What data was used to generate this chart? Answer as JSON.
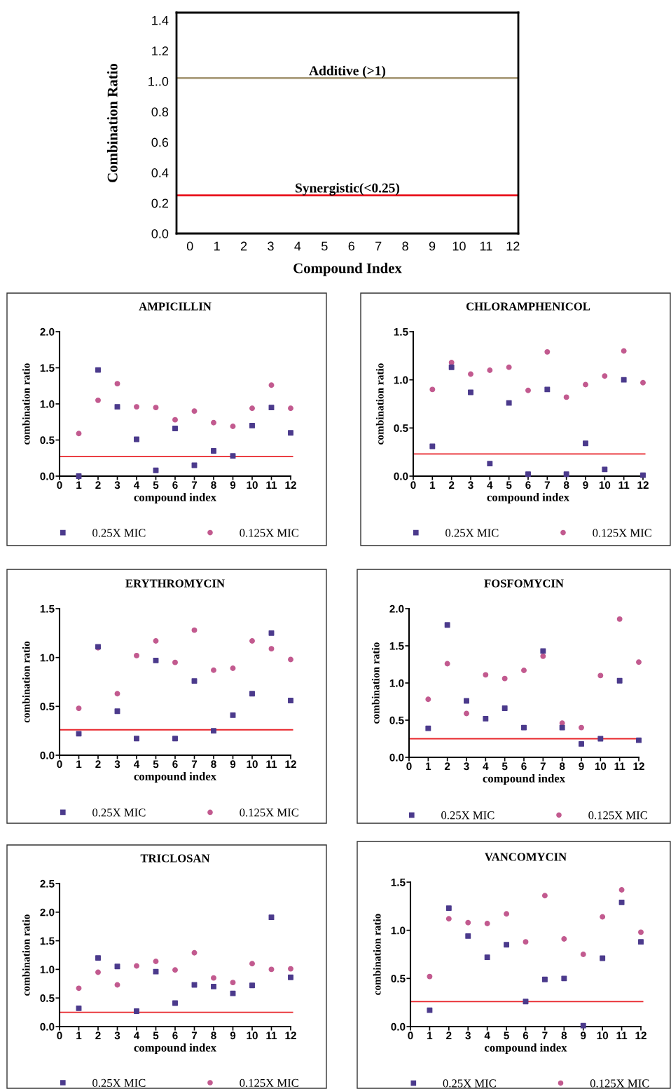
{
  "chart_data": [
    {
      "type": "scatter",
      "xlabel": "Compound Index",
      "ylabel": "Combination Ratio",
      "xlim": [
        -0.5,
        12.2
      ],
      "ylim": [
        0,
        1.45
      ],
      "xticks": [
        0,
        1,
        2,
        3,
        4,
        5,
        6,
        7,
        8,
        9,
        10,
        11,
        12
      ],
      "yticks": [
        {
          "value": 0,
          "label": "0.0"
        },
        0.2,
        0.4,
        0.6,
        0.8,
        {
          "value": 1.0,
          "label": "1..0"
        },
        1.2,
        1.4
      ],
      "ref_lines": [
        {
          "axis": "y",
          "value": 1.02,
          "label": "Additive (>1)",
          "color": "#a89a78"
        },
        {
          "axis": "y",
          "value": 0.25,
          "label": "Synergistic(<0.25)",
          "color": "#e8101a"
        }
      ]
    },
    {
      "type": "scatter",
      "title": "AMPICILLIN",
      "xlabel": "compound index",
      "ylabel": "combination ratio",
      "x": [
        1,
        2,
        3,
        4,
        5,
        6,
        7,
        8,
        9,
        10,
        11,
        12
      ],
      "xlim": [
        0,
        12
      ],
      "ylim": [
        0,
        2.0
      ],
      "xticks": [
        0,
        1,
        2,
        3,
        4,
        5,
        6,
        7,
        8,
        9,
        10,
        11,
        12
      ],
      "yticks": [
        {
          "value": 0,
          "label": "0.0"
        },
        0.5,
        {
          "value": 1,
          "label": "1.0"
        },
        1.5,
        {
          "value": 2,
          "label": "2.0"
        }
      ],
      "legend": "bottom",
      "series": [
        {
          "name": "0.25X MIC",
          "color": "#4b3a8c",
          "marker": "square",
          "values": [
            0.0,
            1.47,
            0.96,
            0.51,
            0.08,
            0.66,
            0.15,
            0.35,
            0.28,
            0.7,
            0.95,
            0.6
          ]
        },
        {
          "name": "0.125X MIC",
          "color": "#c25a8f",
          "marker": "circle",
          "values": [
            0.59,
            1.05,
            1.28,
            0.96,
            0.95,
            0.78,
            0.9,
            0.74,
            0.69,
            0.94,
            1.26,
            0.94
          ]
        }
      ],
      "ref_lines": [
        {
          "axis": "y",
          "value": 0.27,
          "color": "#e8242a"
        }
      ]
    },
    {
      "type": "scatter",
      "title": "CHLORAMPHENICOL",
      "xlabel": "compound index",
      "ylabel": "combination ratio",
      "x": [
        1,
        2,
        3,
        4,
        5,
        6,
        7,
        8,
        9,
        10,
        11,
        12
      ],
      "xlim": [
        0,
        12
      ],
      "ylim": [
        0,
        1.5
      ],
      "xticks": [
        0,
        1,
        2,
        3,
        4,
        5,
        6,
        7,
        8,
        9,
        10,
        11,
        12
      ],
      "yticks": [
        {
          "value": 0,
          "label": "0.0"
        },
        0.5,
        {
          "value": 1,
          "label": "1.0"
        },
        1.5
      ],
      "legend": "bottom",
      "series": [
        {
          "name": "0.25X MIC",
          "color": "#4b3a8c",
          "marker": "square",
          "values": [
            0.31,
            1.13,
            0.87,
            0.13,
            0.76,
            0.02,
            0.9,
            0.02,
            0.34,
            0.07,
            1.0,
            0.01
          ]
        },
        {
          "name": "0.125X MIC",
          "color": "#c25a8f",
          "marker": "circle",
          "values": [
            0.9,
            1.18,
            1.06,
            1.1,
            1.13,
            0.89,
            1.29,
            0.82,
            0.95,
            1.04,
            1.3,
            0.97
          ]
        }
      ],
      "ref_lines": [
        {
          "axis": "y",
          "value": 0.23,
          "color": "#e8242a"
        }
      ]
    },
    {
      "type": "scatter",
      "title": "ERYTHROMYCIN",
      "xlabel": "compound index",
      "ylabel": "combination ratio",
      "x": [
        1,
        2,
        3,
        4,
        5,
        6,
        7,
        8,
        9,
        10,
        11,
        12
      ],
      "xlim": [
        0,
        12
      ],
      "ylim": [
        0,
        1.5
      ],
      "xticks": [
        0,
        1,
        2,
        3,
        4,
        5,
        6,
        7,
        8,
        9,
        10,
        11,
        12
      ],
      "yticks": [
        {
          "value": 0,
          "label": "0.0"
        },
        0.5,
        {
          "value": 1,
          "label": "1.0"
        },
        1.5
      ],
      "legend": "bottom",
      "series": [
        {
          "name": "0.25X MIC",
          "color": "#4b3a8c",
          "marker": "square",
          "values": [
            0.22,
            1.11,
            0.45,
            0.17,
            0.97,
            0.17,
            0.76,
            0.25,
            0.41,
            0.63,
            1.25,
            0.56
          ]
        },
        {
          "name": "0.125X MIC",
          "color": "#c25a8f",
          "marker": "circle",
          "values": [
            0.48,
            1.1,
            0.63,
            1.02,
            1.17,
            0.95,
            1.28,
            0.87,
            0.89,
            1.17,
            1.09,
            0.98
          ]
        }
      ],
      "ref_lines": [
        {
          "axis": "y",
          "value": 0.26,
          "color": "#e8242a"
        }
      ]
    },
    {
      "type": "scatter",
      "title": "FOSFOMYCIN",
      "xlabel": "compound index",
      "ylabel": "combination ratio",
      "x": [
        1,
        2,
        3,
        4,
        5,
        6,
        7,
        8,
        9,
        10,
        11,
        12
      ],
      "xlim": [
        0,
        12
      ],
      "ylim": [
        0,
        2.0
      ],
      "xticks": [
        0,
        1,
        2,
        3,
        4,
        5,
        6,
        7,
        8,
        9,
        10,
        11,
        12
      ],
      "yticks": [
        {
          "value": 0,
          "label": "0.0"
        },
        0.5,
        {
          "value": 1,
          "label": "1.0"
        },
        1.5,
        {
          "value": 2,
          "label": "2.0"
        }
      ],
      "legend": "bottom",
      "series": [
        {
          "name": "0.25X MIC",
          "color": "#4b3a8c",
          "marker": "square",
          "values": [
            0.39,
            1.78,
            0.76,
            0.52,
            0.66,
            0.4,
            1.43,
            0.4,
            0.18,
            0.25,
            1.03,
            0.23
          ]
        },
        {
          "name": "0.125X MIC",
          "color": "#c25a8f",
          "marker": "circle",
          "values": [
            0.78,
            1.26,
            0.59,
            1.11,
            1.06,
            1.17,
            1.36,
            0.46,
            0.4,
            1.1,
            1.86,
            1.28
          ]
        }
      ],
      "ref_lines": [
        {
          "axis": "y",
          "value": 0.25,
          "color": "#e8242a"
        }
      ]
    },
    {
      "type": "scatter",
      "title": "TRICLOSAN",
      "xlabel": "compound index",
      "ylabel": "combination ratio",
      "x": [
        1,
        2,
        3,
        4,
        5,
        6,
        7,
        8,
        9,
        10,
        11,
        12
      ],
      "xlim": [
        0,
        12
      ],
      "ylim": [
        0,
        2.5
      ],
      "xticks": [
        0,
        1,
        2,
        3,
        4,
        5,
        6,
        7,
        8,
        9,
        10,
        11,
        12
      ],
      "yticks": [
        {
          "value": 0,
          "label": "0.0"
        },
        0.5,
        {
          "value": 1,
          "label": "1.0"
        },
        1.5,
        {
          "value": 2,
          "label": "2.0"
        },
        2.5
      ],
      "legend": "bottom",
      "series": [
        {
          "name": "0.25X MIC",
          "color": "#4b3a8c",
          "marker": "square",
          "values": [
            0.32,
            1.2,
            1.05,
            0.27,
            0.96,
            0.41,
            0.73,
            0.7,
            0.58,
            0.72,
            1.91,
            0.86
          ]
        },
        {
          "name": "0.125X MIC",
          "color": "#c25a8f",
          "marker": "circle",
          "values": [
            0.67,
            0.95,
            0.73,
            1.06,
            1.14,
            0.99,
            1.29,
            0.85,
            0.77,
            1.1,
            1.0,
            1.01
          ]
        }
      ],
      "ref_lines": [
        {
          "axis": "y",
          "value": 0.25,
          "color": "#e8242a"
        }
      ]
    },
    {
      "type": "scatter",
      "title": "VANCOMYCIN",
      "xlabel": "compound index",
      "ylabel": "combination ratio",
      "x": [
        1,
        2,
        3,
        4,
        5,
        6,
        7,
        8,
        9,
        10,
        11,
        12
      ],
      "xlim": [
        0,
        12
      ],
      "ylim": [
        0,
        1.5
      ],
      "xticks": [
        0,
        1,
        2,
        3,
        4,
        5,
        6,
        7,
        8,
        9,
        10,
        11,
        12
      ],
      "yticks": [
        {
          "value": 0,
          "label": "0.0"
        },
        0.5,
        {
          "value": 1,
          "label": "1.0"
        },
        1.5
      ],
      "legend": "bottom",
      "series": [
        {
          "name": "0.25X MIC",
          "color": "#4b3a8c",
          "marker": "square",
          "values": [
            0.17,
            1.23,
            0.94,
            0.72,
            0.85,
            0.26,
            0.49,
            0.5,
            0.01,
            0.71,
            1.29,
            0.88
          ]
        },
        {
          "name": "0.125X MIC",
          "color": "#c25a8f",
          "marker": "circle",
          "values": [
            0.52,
            1.12,
            1.08,
            1.07,
            1.17,
            0.88,
            1.36,
            0.91,
            0.75,
            1.14,
            1.42,
            0.98
          ]
        }
      ],
      "ref_lines": [
        {
          "axis": "y",
          "value": 0.26,
          "color": "#e8242a"
        }
      ]
    }
  ]
}
